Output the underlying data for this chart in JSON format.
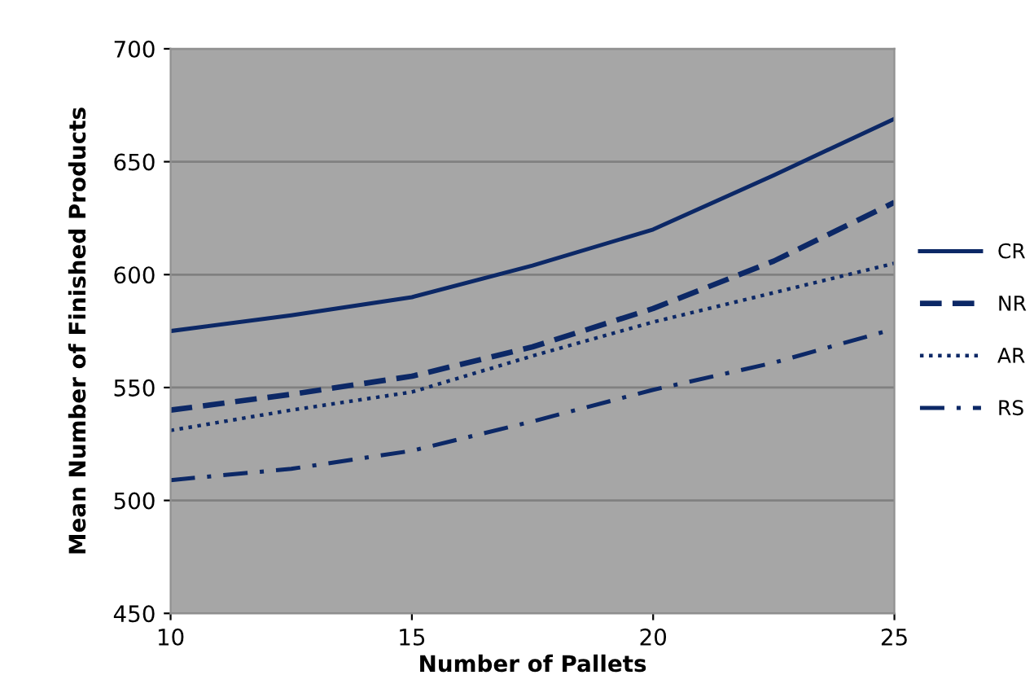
{
  "chart_data": {
    "type": "line",
    "xlabel": "Number of Pallets",
    "ylabel": "Mean Number of Finished Products",
    "x": [
      10,
      12.5,
      15,
      17.5,
      20,
      22.5,
      25
    ],
    "series": [
      {
        "name": "RS",
        "color": "#0c2866",
        "line_style": "dashdot",
        "values": [
          509,
          514,
          522,
          535,
          549,
          561,
          576
        ]
      },
      {
        "name": "AR",
        "color": "#0c2866",
        "line_style": "dotted",
        "values": [
          531,
          540,
          548,
          564,
          579,
          592,
          605
        ]
      },
      {
        "name": "NR",
        "color": "#0c2866",
        "line_style": "dashed",
        "values": [
          540,
          547,
          555,
          568,
          585,
          606,
          632
        ]
      },
      {
        "name": "CR",
        "color": "#0c2866",
        "line_style": "solid",
        "values": [
          575,
          582,
          590,
          604,
          620,
          644,
          669
        ]
      }
    ],
    "xlim": [
      10,
      25
    ],
    "xticks": [
      10,
      15,
      20,
      25
    ],
    "ylim": [
      450,
      700
    ],
    "yticks": [
      450,
      500,
      550,
      600,
      650,
      700
    ],
    "grid": "y",
    "legend": "right",
    "marker": "none"
  }
}
